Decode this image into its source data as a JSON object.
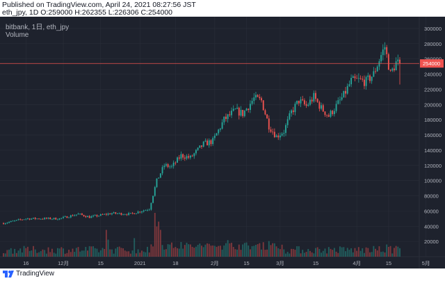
{
  "header": {
    "published": "Published on TradingView.com, April 24, 2021 08:27:56 JST",
    "symbol_line": "eth_jpy, 1D O:259000 H:262355 L:226306 C:254000"
  },
  "legend": {
    "main": "bitbank, 1日, eth_jpy",
    "volume": "Volume"
  },
  "footer": {
    "brand": "TradingView"
  },
  "colors": {
    "up": "#26a69a",
    "down": "#ef5350",
    "bg": "#1e222d",
    "grid": "#2a2e39",
    "text": "#b2b5be"
  },
  "chart_data": {
    "type": "candlestick",
    "title": "bitbank, 1日, eth_jpy",
    "symbol": "eth_jpy",
    "interval": "1日",
    "ylim": [
      0,
      310000
    ],
    "yticks": [
      20000,
      40000,
      60000,
      80000,
      100000,
      120000,
      140000,
      160000,
      180000,
      200000,
      220000,
      240000,
      260000,
      280000,
      300000
    ],
    "ytick_labels": [
      "20000",
      "40000",
      "60000",
      "80000",
      "100000",
      "120000",
      "140000",
      "160000",
      "180000",
      "200000",
      "220000",
      "240000",
      "260000",
      "280000",
      "300000"
    ],
    "xtick_labels": [
      "16",
      "12月",
      "15",
      "2021",
      "18",
      "2月",
      "15",
      "3月",
      "15",
      "4月",
      "15",
      "5月"
    ],
    "last_price": 254000,
    "last_price_label": "254000",
    "ohlc_last": {
      "open": 259000,
      "high": 262355,
      "low": 226306,
      "close": 254000
    },
    "price_path": [
      [
        0,
        44000
      ],
      [
        12,
        50000
      ],
      [
        30,
        50000
      ],
      [
        40,
        56000
      ],
      [
        46,
        52000
      ],
      [
        58,
        57000
      ],
      [
        68,
        56000
      ],
      [
        78,
        63000
      ],
      [
        82,
        100000
      ],
      [
        86,
        120000
      ],
      [
        90,
        118000
      ],
      [
        95,
        133000
      ],
      [
        100,
        130000
      ],
      [
        107,
        148000
      ],
      [
        112,
        152000
      ],
      [
        118,
        180000
      ],
      [
        124,
        192000
      ],
      [
        128,
        188000
      ],
      [
        134,
        208000
      ],
      [
        138,
        205000
      ],
      [
        142,
        172000
      ],
      [
        146,
        158000
      ],
      [
        150,
        165000
      ],
      [
        154,
        190000
      ],
      [
        158,
        205000
      ],
      [
        162,
        198000
      ],
      [
        166,
        210000
      ],
      [
        170,
        195000
      ],
      [
        174,
        185000
      ],
      [
        178,
        198000
      ],
      [
        182,
        212000
      ],
      [
        186,
        231000
      ],
      [
        190,
        232000
      ],
      [
        194,
        230000
      ],
      [
        198,
        240000
      ],
      [
        202,
        265000
      ],
      [
        204,
        276000
      ],
      [
        207,
        240000
      ],
      [
        210,
        255000
      ],
      [
        212,
        254000
      ]
    ],
    "count": 213,
    "volume": {
      "name": "Volume",
      "max": 1.0,
      "highlights": [
        [
          81,
          0.9
        ],
        [
          82,
          0.62
        ],
        [
          83,
          0.72
        ],
        [
          84,
          0.55
        ],
        [
          55,
          0.55
        ],
        [
          56,
          0.35
        ],
        [
          70,
          0.38
        ],
        [
          95,
          0.3
        ],
        [
          120,
          0.34
        ],
        [
          142,
          0.32
        ],
        [
          205,
          0.25
        ],
        [
          206,
          0.2
        ],
        [
          209,
          0.18
        ],
        [
          210,
          0.22
        ]
      ]
    }
  }
}
